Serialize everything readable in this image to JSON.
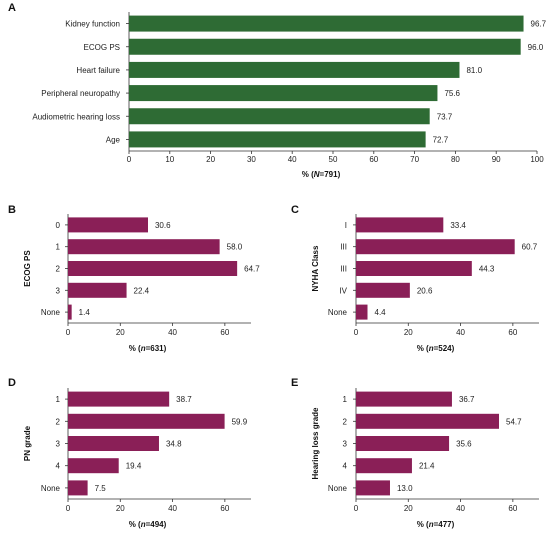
{
  "chart_data": [
    {
      "panel": "A",
      "type": "bar",
      "orientation": "horizontal",
      "categories": [
        "Kidney function",
        "ECOG PS",
        "Heart failure",
        "Peripheral neuropathy",
        "Audiometric hearing loss",
        "Age"
      ],
      "values": [
        96.7,
        96.0,
        81.0,
        75.6,
        73.7,
        72.7
      ],
      "value_labels": [
        "96.7",
        "96.0",
        "81.0",
        "75.6",
        "73.7",
        "72.7"
      ],
      "xlabel": {
        "prefix": "% (",
        "n": "N",
        "suffix": "=791)"
      },
      "ylabel": "",
      "xlim": [
        0,
        100
      ],
      "xticks": [
        "0",
        "10",
        "20",
        "30",
        "40",
        "50",
        "60",
        "70",
        "80",
        "90",
        "100"
      ],
      "color": "#2e6b34"
    },
    {
      "panel": "B",
      "type": "bar",
      "orientation": "horizontal",
      "categories": [
        "0",
        "1",
        "2",
        "3",
        "None"
      ],
      "values": [
        30.6,
        58.0,
        64.7,
        22.4,
        1.4
      ],
      "value_labels": [
        "30.6",
        "58.0",
        "64.7",
        "22.4",
        "1.4"
      ],
      "xlabel": {
        "prefix": "% (",
        "n": "n",
        "suffix": "=631)"
      },
      "ylabel": "ECOG PS",
      "xlim": [
        0,
        70
      ],
      "xticks": [
        "0",
        "20",
        "40",
        "60"
      ],
      "color": "#8a1f57"
    },
    {
      "panel": "C",
      "type": "bar",
      "orientation": "horizontal",
      "categories": [
        "I",
        "III",
        "III",
        "IV",
        "None"
      ],
      "values": [
        33.4,
        60.7,
        44.3,
        20.6,
        4.4
      ],
      "value_labels": [
        "33.4",
        "60.7",
        "44.3",
        "20.6",
        "4.4"
      ],
      "xlabel": {
        "prefix": "% (",
        "n": "n",
        "suffix": "=524)"
      },
      "ylabel": "NYHA Class",
      "xlim": [
        0,
        70
      ],
      "xticks": [
        "0",
        "20",
        "40",
        "60"
      ],
      "color": "#8a1f57"
    },
    {
      "panel": "D",
      "type": "bar",
      "orientation": "horizontal",
      "categories": [
        "1",
        "2",
        "3",
        "4",
        "None"
      ],
      "values": [
        38.7,
        59.9,
        34.8,
        19.4,
        7.5
      ],
      "value_labels": [
        "38.7",
        "59.9",
        "34.8",
        "19.4",
        "7.5"
      ],
      "xlabel": {
        "prefix": "% (",
        "n": "n",
        "suffix": "=494)"
      },
      "ylabel": "PN grade",
      "xlim": [
        0,
        70
      ],
      "xticks": [
        "0",
        "20",
        "40",
        "60"
      ],
      "color": "#8a1f57"
    },
    {
      "panel": "E",
      "type": "bar",
      "orientation": "horizontal",
      "categories": [
        "1",
        "2",
        "3",
        "4",
        "None"
      ],
      "values": [
        36.7,
        54.7,
        35.6,
        21.4,
        13.0
      ],
      "value_labels": [
        "36.7",
        "54.7",
        "35.6",
        "21.4",
        "13.0"
      ],
      "xlabel": {
        "prefix": "% (",
        "n": "n",
        "suffix": "=477)"
      },
      "ylabel": "Hearing loss grade",
      "xlim": [
        0,
        70
      ],
      "xticks": [
        "0",
        "20",
        "40",
        "60"
      ],
      "color": "#8a1f57"
    }
  ]
}
